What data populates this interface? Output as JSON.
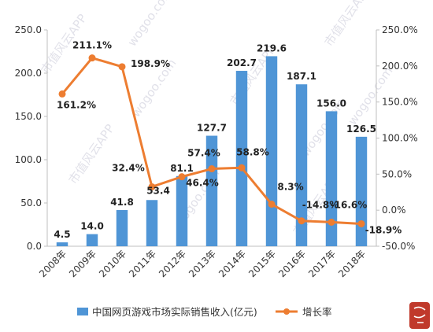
{
  "chart_data": {
    "type": "bar",
    "categories": [
      "2008年",
      "2009年",
      "2010年",
      "2011年",
      "2012年",
      "2013年",
      "2014年",
      "2015年",
      "2016年",
      "2017年",
      "2018年"
    ],
    "series": [
      {
        "name": "中国网页游戏市场实际销售收入(亿元)",
        "type": "bar",
        "axis": "left",
        "values": [
          4.5,
          14.0,
          41.8,
          53.4,
          81.1,
          127.7,
          202.7,
          219.6,
          187.1,
          156.0,
          126.5
        ],
        "labels": [
          "4.5",
          "14.0",
          "41.8",
          "53.4",
          "81.1",
          "127.7",
          "202.7",
          "219.6",
          "187.1",
          "156.0",
          "126.5"
        ]
      },
      {
        "name": "增长率",
        "type": "line",
        "axis": "right",
        "values": [
          161.2,
          211.1,
          198.9,
          32.4,
          46.4,
          57.4,
          58.8,
          8.3,
          -14.8,
          -16.6,
          -18.9
        ],
        "labels": [
          "161.2%",
          "211.1%",
          "198.9%",
          "32.4%",
          "46.4%",
          "57.4%",
          "58.8%",
          "8.3%",
          "-14.8%",
          "-16.6%",
          "-18.9%"
        ]
      }
    ],
    "yleft": {
      "ylim": [
        0,
        250
      ],
      "ticks": [
        0,
        50,
        100,
        150,
        200,
        250
      ],
      "tick_labels": [
        "0.0",
        "50.0",
        "100.0",
        "150.0",
        "200.0",
        "250.0"
      ]
    },
    "yright": {
      "ylim": [
        -50,
        250
      ],
      "ticks": [
        -50,
        0,
        50,
        100,
        150,
        200,
        250
      ],
      "tick_labels": [
        "-50.0%",
        "0.0%",
        "50.0%",
        "100.0%",
        "150.0%",
        "200.0%",
        "250.0%"
      ]
    },
    "grid": false,
    "legend": "bottom",
    "colors": {
      "bar": "#4f95d6",
      "line": "#ed7d31",
      "axis": "#bfbfbf"
    },
    "watermark": [
      "市值风云APP",
      "wogoo.com"
    ]
  }
}
